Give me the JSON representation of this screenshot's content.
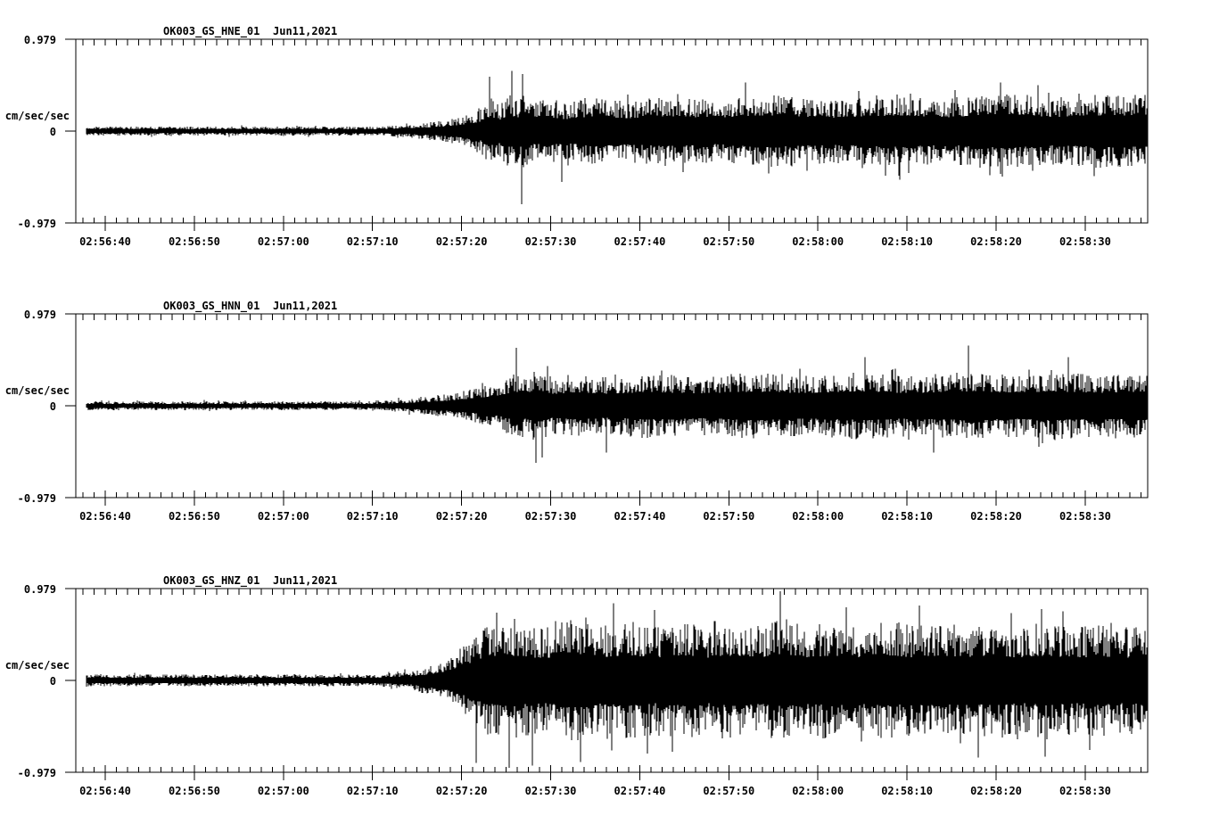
{
  "page": {
    "background": "#ffffff",
    "foreground": "#000000"
  },
  "axis": {
    "y_unit": "cm/sec/sec",
    "y_tick_labels": [
      "0.979",
      "0",
      "-0.979"
    ],
    "ylim": [
      -0.979,
      0.979
    ],
    "x_tick_labels": [
      "02:56:40",
      "02:56:50",
      "02:57:00",
      "02:57:10",
      "02:57:20",
      "02:57:30",
      "02:57:40",
      "02:57:50",
      "02:58:00",
      "02:58:10",
      "02:58:20",
      "02:58:30"
    ],
    "x_major_interval_s": 10,
    "x_minor_divisions_per_major": 8,
    "x_duration_s": 120.2,
    "x_offset_of_first_label_s": 3.3,
    "grid": "off",
    "legend": "none"
  },
  "chart_data": [
    {
      "type": "line",
      "kind": "seismogram",
      "station": "OK003_GS_HNE_01",
      "date": "Jun11,2021",
      "title": "OK003_GS_HNE_01  Jun11,2021",
      "ylabel": "cm/sec/sec",
      "ylim": [
        -0.979,
        0.979
      ],
      "y_tick_labels": [
        "0.979",
        "0",
        "-0.979"
      ],
      "x_tick_labels": [
        "02:56:40",
        "02:56:50",
        "02:57:00",
        "02:57:10",
        "02:57:20",
        "02:57:30",
        "02:57:40",
        "02:57:50",
        "02:58:00",
        "02:58:10",
        "02:58:20",
        "02:58:30"
      ],
      "seed": 11,
      "noise_start_s": 1.2,
      "envelope": [
        [
          0,
          0.05
        ],
        [
          34,
          0.048
        ],
        [
          38,
          0.075
        ],
        [
          41,
          0.11
        ],
        [
          43.5,
          0.16
        ],
        [
          45.5,
          0.24
        ],
        [
          46.5,
          0.36
        ],
        [
          47.6,
          0.29
        ],
        [
          48.8,
          0.4
        ],
        [
          49.7,
          0.33
        ],
        [
          50.5,
          0.44
        ],
        [
          51.6,
          0.3
        ],
        [
          53,
          0.36
        ],
        [
          55,
          0.3
        ],
        [
          58,
          0.37
        ],
        [
          62,
          0.32
        ],
        [
          66,
          0.38
        ],
        [
          72,
          0.33
        ],
        [
          78,
          0.4
        ],
        [
          85,
          0.34
        ],
        [
          92,
          0.4
        ],
        [
          98,
          0.35
        ],
        [
          104,
          0.42
        ],
        [
          110,
          0.36
        ],
        [
          116,
          0.4
        ],
        [
          120.5,
          0.38
        ]
      ],
      "spikes": [
        [
          46.4,
          0.58
        ],
        [
          48.9,
          0.64
        ],
        [
          50.0,
          -0.78
        ],
        [
          50.2,
          0.61
        ],
        [
          54.6,
          -0.54
        ],
        [
          75.2,
          0.52
        ],
        [
          92.5,
          -0.52
        ],
        [
          103.8,
          0.52
        ]
      ]
    },
    {
      "type": "line",
      "kind": "seismogram",
      "station": "OK003_GS_HNN_01",
      "date": "Jun11,2021",
      "title": "OK003_GS_HNN_01  Jun11,2021",
      "ylabel": "cm/sec/sec",
      "ylim": [
        -0.979,
        0.979
      ],
      "y_tick_labels": [
        "0.979",
        "0",
        "-0.979"
      ],
      "x_tick_labels": [
        "02:56:40",
        "02:56:50",
        "02:57:00",
        "02:57:10",
        "02:57:20",
        "02:57:30",
        "02:57:40",
        "02:57:50",
        "02:58:00",
        "02:58:10",
        "02:58:20",
        "02:58:30"
      ],
      "seed": 23,
      "noise_start_s": 1.2,
      "envelope": [
        [
          0,
          0.048
        ],
        [
          34,
          0.046
        ],
        [
          38,
          0.08
        ],
        [
          42,
          0.13
        ],
        [
          45,
          0.19
        ],
        [
          47.5,
          0.26
        ],
        [
          49.3,
          0.36
        ],
        [
          50.5,
          0.33
        ],
        [
          52,
          0.4
        ],
        [
          53.5,
          0.3
        ],
        [
          56,
          0.34
        ],
        [
          60,
          0.3
        ],
        [
          64,
          0.35
        ],
        [
          70,
          0.31
        ],
        [
          76,
          0.36
        ],
        [
          82,
          0.32
        ],
        [
          88,
          0.36
        ],
        [
          94,
          0.32
        ],
        [
          100,
          0.36
        ],
        [
          106,
          0.33
        ],
        [
          110,
          0.36
        ],
        [
          115,
          0.33
        ],
        [
          120.5,
          0.35
        ]
      ],
      "spikes": [
        [
          49.4,
          0.62
        ],
        [
          51.7,
          -0.61
        ],
        [
          52.4,
          -0.55
        ],
        [
          59.6,
          -0.5
        ],
        [
          88.6,
          0.52
        ],
        [
          96.3,
          -0.5
        ],
        [
          100.2,
          0.64
        ],
        [
          111.4,
          0.52
        ]
      ]
    },
    {
      "type": "line",
      "kind": "seismogram",
      "station": "OK003_GS_HNZ_01",
      "date": "Jun11,2021",
      "title": "OK003_GS_HNZ_01  Jun11,2021",
      "ylabel": "cm/sec/sec",
      "ylim": [
        -0.979,
        0.979
      ],
      "y_tick_labels": [
        "0.979",
        "0",
        "-0.979"
      ],
      "x_tick_labels": [
        "02:56:40",
        "02:56:50",
        "02:57:00",
        "02:57:10",
        "02:57:20",
        "02:57:30",
        "02:57:40",
        "02:57:50",
        "02:58:00",
        "02:58:10",
        "02:58:20",
        "02:58:30"
      ],
      "seed": 37,
      "noise_start_s": 1.2,
      "envelope": [
        [
          0,
          0.065
        ],
        [
          34,
          0.062
        ],
        [
          37.5,
          0.1
        ],
        [
          40,
          0.16
        ],
        [
          42.5,
          0.28
        ],
        [
          44.5,
          0.46
        ],
        [
          46,
          0.58
        ],
        [
          48,
          0.64
        ],
        [
          50,
          0.6
        ],
        [
          52.5,
          0.56
        ],
        [
          55,
          0.63
        ],
        [
          57.5,
          0.68
        ],
        [
          59,
          0.58
        ],
        [
          62,
          0.64
        ],
        [
          65,
          0.58
        ],
        [
          68,
          0.63
        ],
        [
          71,
          0.57
        ],
        [
          74,
          0.63
        ],
        [
          77,
          0.59
        ],
        [
          79.5,
          0.66
        ],
        [
          82,
          0.59
        ],
        [
          85,
          0.63
        ],
        [
          88,
          0.57
        ],
        [
          91,
          0.64
        ],
        [
          94,
          0.59
        ],
        [
          97,
          0.63
        ],
        [
          100,
          0.57
        ],
        [
          103,
          0.63
        ],
        [
          106,
          0.57
        ],
        [
          109,
          0.63
        ],
        [
          112,
          0.57
        ],
        [
          115,
          0.61
        ],
        [
          118,
          0.57
        ],
        [
          120.5,
          0.61
        ]
      ],
      "spikes": [
        [
          44.9,
          -0.88
        ],
        [
          47.2,
          0.72
        ],
        [
          48.6,
          -0.93
        ],
        [
          51.3,
          -0.91
        ],
        [
          56.7,
          -0.87
        ],
        [
          60.4,
          0.82
        ],
        [
          64.2,
          -0.78
        ],
        [
          67.0,
          -0.76
        ],
        [
          79.1,
          0.95
        ],
        [
          86.5,
          0.78
        ],
        [
          94.7,
          0.8
        ],
        [
          101.3,
          -0.82
        ],
        [
          108.4,
          0.76
        ],
        [
          113.8,
          -0.74
        ]
      ]
    }
  ]
}
